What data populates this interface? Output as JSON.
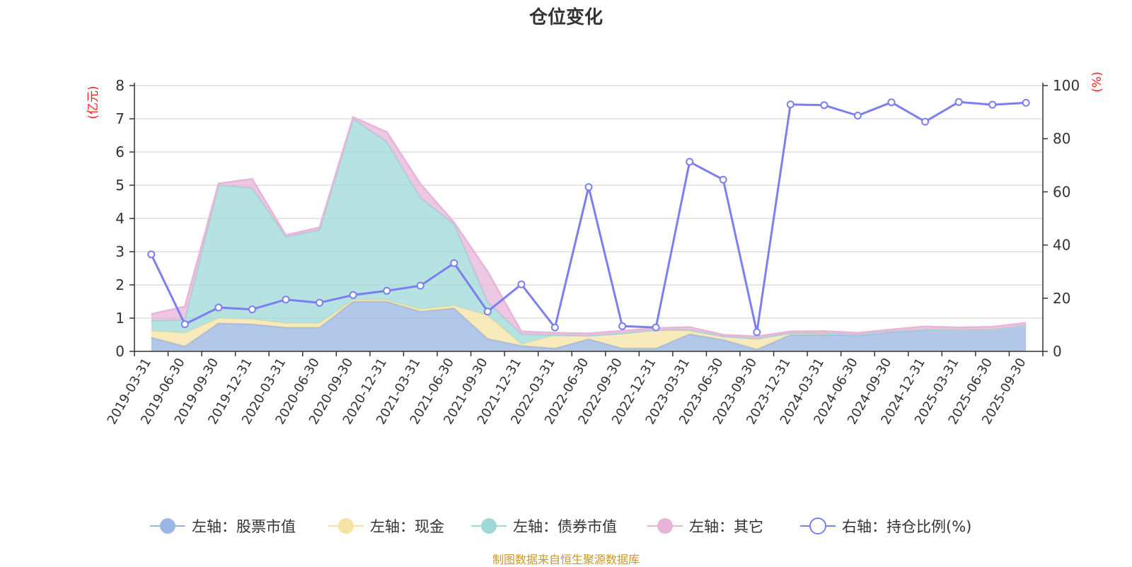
{
  "chart_data": {
    "type": "area",
    "title": "仓位变化",
    "source": "制图数据来自恒生聚源数据库",
    "left_axis": {
      "unit": "(亿元)",
      "ylim": [
        0,
        8
      ],
      "ticks": [
        "0",
        "1",
        "2",
        "3",
        "4",
        "5",
        "6",
        "7",
        "8"
      ]
    },
    "right_axis": {
      "unit": "(%)",
      "ylim": [
        0,
        100
      ],
      "ticks": [
        "0",
        "20",
        "40",
        "60",
        "80",
        "100"
      ]
    },
    "categories": [
      "2019-03-31",
      "2019-06-30",
      "2019-09-30",
      "2019-12-31",
      "2020-03-31",
      "2020-06-30",
      "2020-09-30",
      "2020-12-31",
      "2021-03-31",
      "2021-06-30",
      "2021-09-30",
      "2021-12-31",
      "2022-03-31",
      "2022-06-30",
      "2022-09-30",
      "2022-12-31",
      "2023-03-31",
      "2023-06-30",
      "2023-09-30",
      "2023-12-31",
      "2024-03-31",
      "2024-06-30",
      "2024-09-30",
      "2024-12-31",
      "2025-03-31",
      "2025-06-30",
      "2025-09-30"
    ],
    "series": [
      {
        "name": "左轴：股票市值",
        "axis": "left",
        "kind": "stacked-area",
        "color": "#9ab6e2",
        "values": [
          0.42,
          0.15,
          0.85,
          0.82,
          0.72,
          0.72,
          1.5,
          1.5,
          1.2,
          1.3,
          0.38,
          0.17,
          0.09,
          0.37,
          0.09,
          0.09,
          0.52,
          0.35,
          0.06,
          0.5,
          0.5,
          0.48,
          0.58,
          0.64,
          0.65,
          0.65,
          0.78
        ]
      },
      {
        "name": "左轴：现金",
        "axis": "left",
        "kind": "stacked-area",
        "color": "#f6e3a3",
        "values": [
          0.2,
          0.4,
          0.15,
          0.15,
          0.13,
          0.13,
          0.05,
          0.05,
          0.07,
          0.08,
          0.7,
          0.05,
          0.4,
          0.1,
          0.45,
          0.55,
          0.12,
          0.1,
          0.32,
          0.05,
          0.05,
          0.02,
          0.02,
          0.02,
          0.0,
          0.0,
          0.0
        ]
      },
      {
        "name": "左轴：债券市值",
        "axis": "left",
        "kind": "stacked-area",
        "color": "#9ed8d8",
        "values": [
          0.3,
          0.4,
          4.0,
          3.95,
          2.6,
          2.8,
          5.45,
          4.75,
          3.35,
          2.45,
          0.4,
          0.3,
          0.0,
          0.0,
          0.0,
          0.0,
          0.0,
          0.0,
          0.0,
          0.0,
          0.0,
          0.0,
          0.0,
          0.0,
          0.0,
          0.0,
          0.0
        ]
      },
      {
        "name": "左轴：其它",
        "axis": "left",
        "kind": "stacked-area",
        "color": "#e8b4d8",
        "values": [
          0.2,
          0.4,
          0.05,
          0.27,
          0.05,
          0.08,
          0.05,
          0.3,
          0.42,
          0.05,
          0.92,
          0.08,
          0.07,
          0.07,
          0.08,
          0.06,
          0.09,
          0.05,
          0.07,
          0.05,
          0.06,
          0.06,
          0.06,
          0.09,
          0.07,
          0.09,
          0.08
        ]
      },
      {
        "name": "右轴：持仓比例(%)",
        "axis": "right",
        "kind": "line",
        "color": "#7b7ff0",
        "values": [
          36.5,
          10.2,
          16.5,
          15.8,
          19.5,
          18.3,
          21.2,
          22.8,
          24.7,
          33.2,
          15.0,
          25.2,
          9.0,
          61.8,
          9.5,
          9.0,
          71.3,
          64.6,
          7.2,
          92.9,
          92.6,
          88.7,
          93.7,
          86.4,
          93.8,
          92.8,
          93.5
        ]
      }
    ],
    "legend": [
      "左轴：股票市值",
      "左轴：现金",
      "左轴：债券市值",
      "左轴：其它",
      "右轴：持仓比例(%)"
    ],
    "legend_position": "bottom",
    "grid": true
  }
}
